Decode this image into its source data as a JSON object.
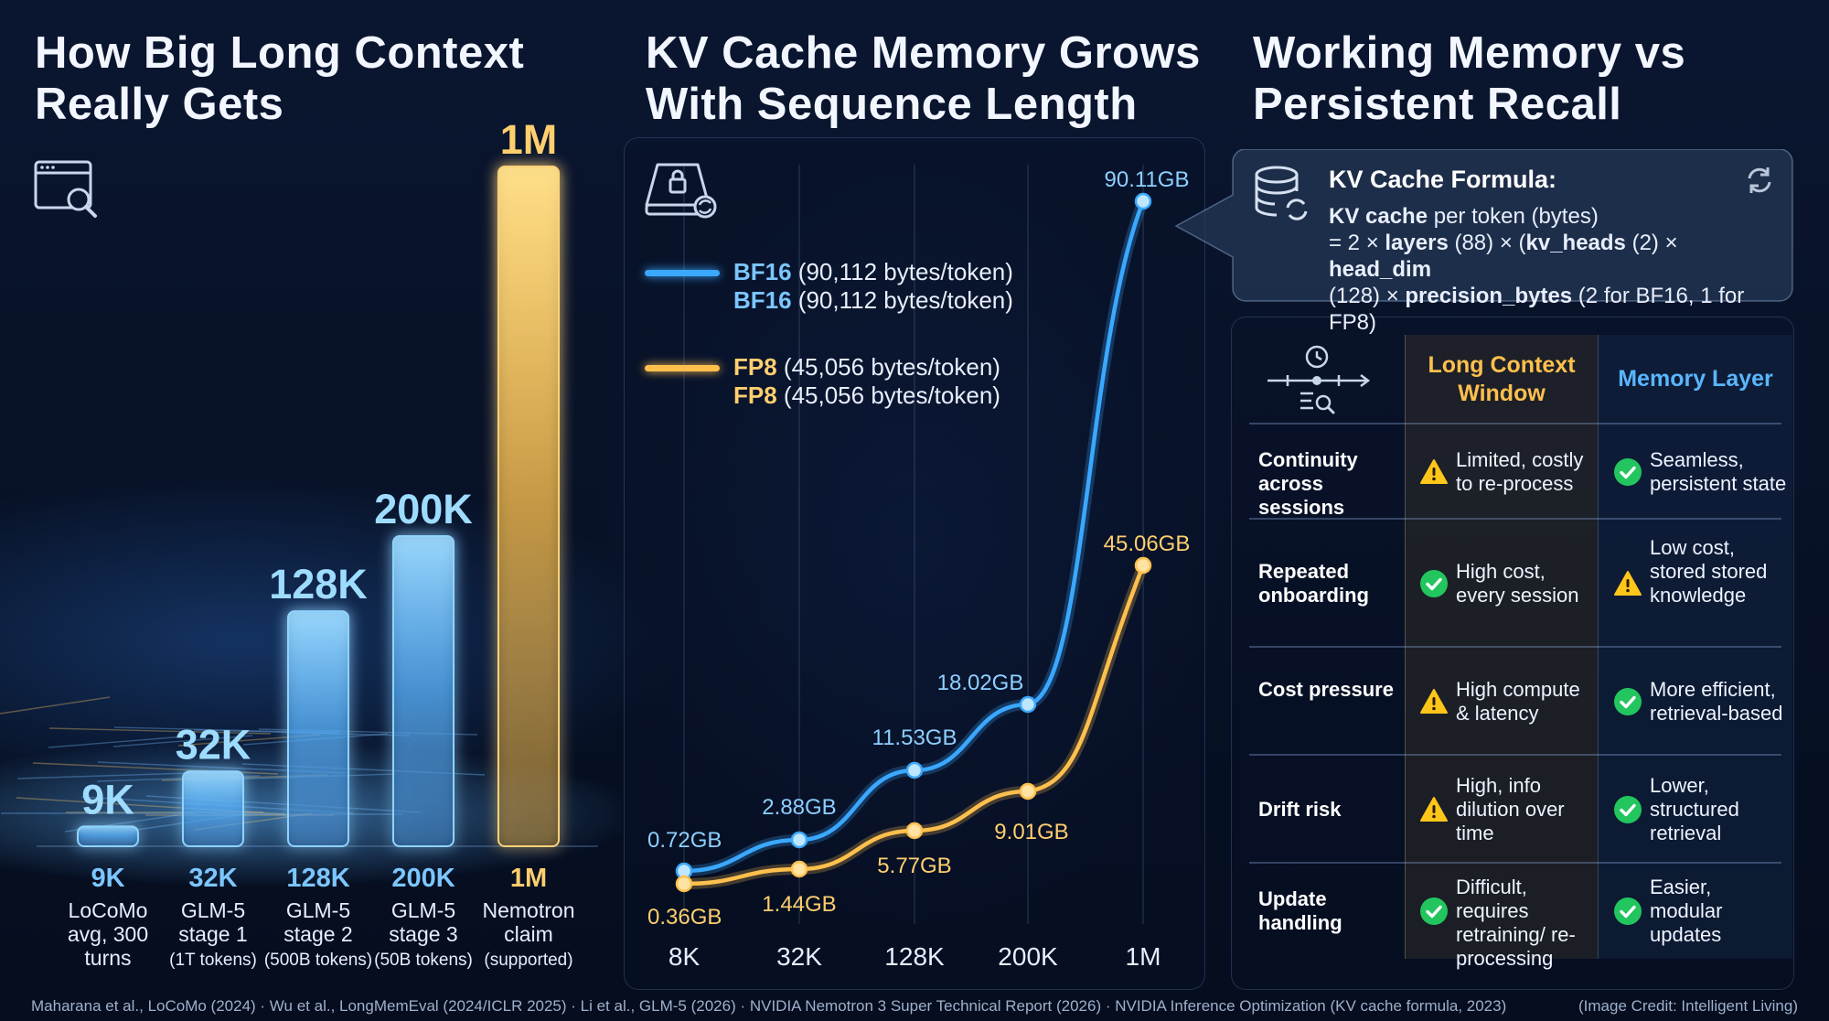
{
  "panel1": {
    "title_line1": "How Big Long Context",
    "title_line2": "Really Gets"
  },
  "panel2": {
    "title_line1": "KV Cache Memory Grows",
    "title_line2": "With Sequence Length",
    "legend": [
      {
        "bold": "BF16",
        "rest": " (90,112 bytes/token)",
        "color": "#3aa8ff"
      },
      {
        "bold": "BF16",
        "rest": " (90,112 bytes/token)",
        "color": "#3aa8ff"
      },
      {
        "bold": "FP8",
        "rest": " (45,056 bytes/token)",
        "color": "#ffc04d"
      },
      {
        "bold": "FP8",
        "rest": " (45,056 bytes/token)",
        "color": "#ffc04d"
      }
    ]
  },
  "panel3": {
    "title_line1": "Working Memory vs",
    "title_line2": "Persistent Recall",
    "formula_title": "KV Cache Formula:",
    "formula_l1_bold": "KV cache",
    "formula_l1_rest": " per token (bytes)",
    "formula_l2_a": "= 2 × ",
    "formula_l2_b": "layers",
    "formula_l2_c": " (88) × (",
    "formula_l2_d": "kv_heads",
    "formula_l2_e": " (2) × ",
    "formula_l2_f": "head_dim",
    "formula_l3_a": "(128) × ",
    "formula_l3_b": "precision_bytes",
    "formula_l3_c": " (2 for BF16, 1 for FP8)",
    "col1_header": "Long Context Window",
    "col2_header": "Memory Layer",
    "rows": [
      {
        "label": "Continuity across sessions",
        "c1": "Limited, costly to re-process",
        "c1_icon": "warning-icon",
        "c2": "Seamless, persistent state",
        "c2_icon": "check-icon"
      },
      {
        "label": "Repeated onboarding",
        "c1": "High cost, every session",
        "c1_icon": "check-icon",
        "c2": "Low cost, stored stored knowledge",
        "c2_icon": "warning-icon"
      },
      {
        "label": "Cost pressure",
        "c1": "High compute & latency",
        "c1_icon": "warning-icon",
        "c2": "More efficient, retrieval-based",
        "c2_icon": "check-icon"
      },
      {
        "label": "Drift risk",
        "c1": "High, info dilution over time",
        "c1_icon": "warning-icon",
        "c2": "Lower, structured retrieval",
        "c2_icon": "check-icon"
      },
      {
        "label": "Update handling",
        "c1": "Difficult, requires retraining/ re-processing",
        "c1_icon": "check-icon",
        "c2": "Easier, modular updates",
        "c2_icon": "check-icon"
      }
    ]
  },
  "footer": {
    "sources": "Maharana et al., LoCoMo (2024) · Wu et al., LongMemEval (2024/ICLR 2025) · Li et al., GLM-5 (2026) · NVIDIA Nemotron 3 Super Technical Report (2026) · NVIDIA Inference Optimization (KV cache formula, 2023)",
    "credit": "(Image Credit: Intelligent Living)"
  },
  "colors": {
    "blue": "#3aa8ff",
    "gold": "#ffc04d",
    "warn": "#ffc61a",
    "ok": "#22c55e"
  },
  "chart_data": [
    {
      "type": "bar",
      "title": "How Big Long Context Really Gets",
      "categories": [
        "9K",
        "32K",
        "128K",
        "200K",
        "1M"
      ],
      "values": [
        9000,
        32000,
        128000,
        200000,
        1000000
      ],
      "value_labels": [
        "9K",
        "32K",
        "128K",
        "200K",
        "1M"
      ],
      "category_captions": [
        {
          "top": "9K",
          "lines": [
            "LoCoMo",
            "avg, 300",
            "turns"
          ]
        },
        {
          "top": "32K",
          "lines": [
            "GLM-5",
            "stage 1",
            "(1T tokens)"
          ]
        },
        {
          "top": "128K",
          "lines": [
            "GLM-5",
            "stage 2",
            "(500B tokens)"
          ]
        },
        {
          "top": "200K",
          "lines": [
            "GLM-5",
            "stage 3",
            "(50B tokens)"
          ]
        },
        {
          "top": "1M",
          "lines": [
            "Nemotron",
            "claim",
            "(supported)"
          ]
        }
      ],
      "scale": "non-linear (visual)"
    },
    {
      "type": "line",
      "title": "KV Cache Memory Grows With Sequence Length",
      "categories": [
        "8K",
        "32K",
        "128K",
        "200K",
        "1M"
      ],
      "series": [
        {
          "name": "BF16 (90,112 bytes/token)",
          "values": [
            0.72,
            2.88,
            11.53,
            18.02,
            90.11
          ],
          "labels": [
            "0.72GB",
            "2.88GB",
            "11.53GB",
            "18.02GB",
            "90.11GB"
          ],
          "color": "#3aa8ff"
        },
        {
          "name": "FP8 (45,056 bytes/token)",
          "values": [
            0.36,
            1.44,
            5.77,
            9.01,
            45.06
          ],
          "labels": [
            "0.36GB",
            "1.44GB",
            "5.77GB",
            "9.01GB",
            "45.06GB"
          ],
          "color": "#ffc04d"
        }
      ],
      "grid": true
    }
  ]
}
